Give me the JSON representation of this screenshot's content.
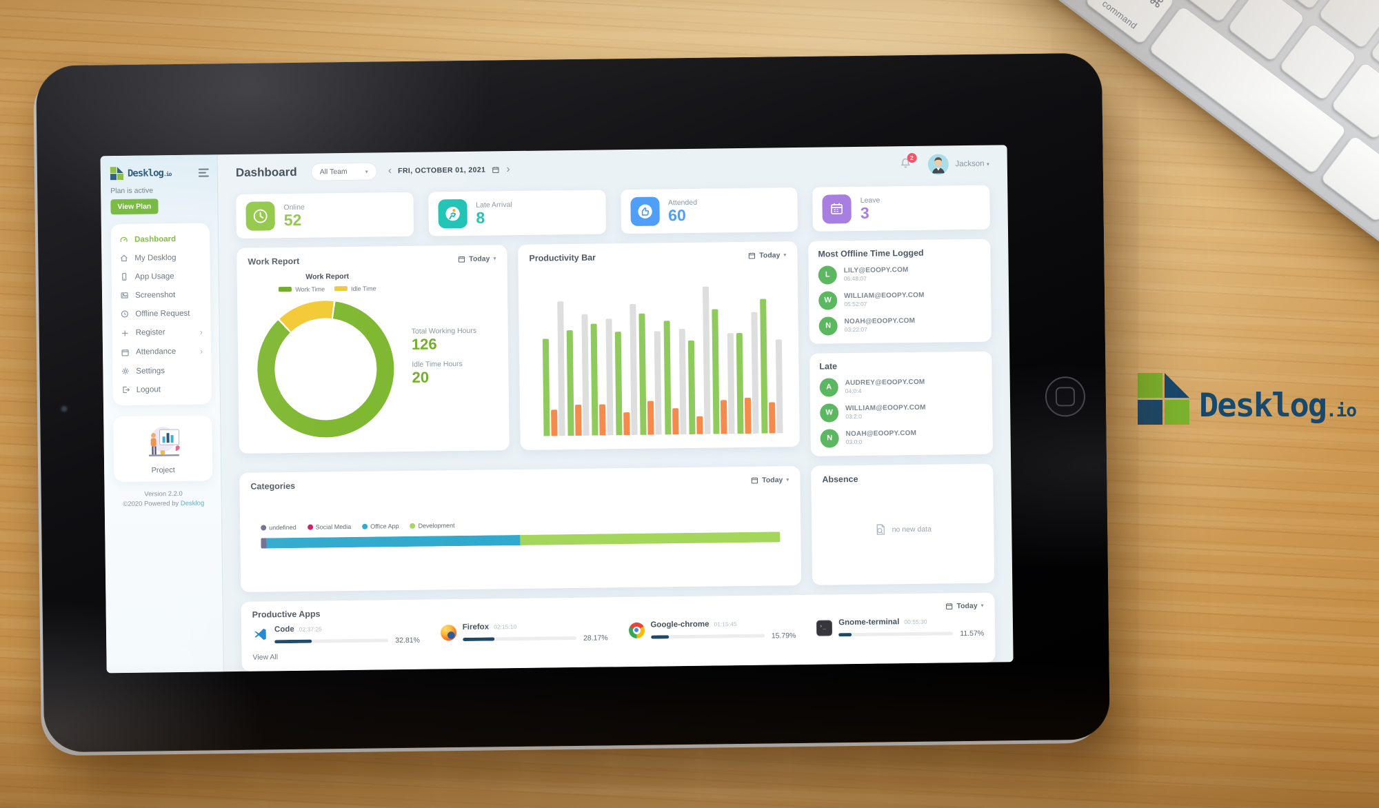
{
  "brand": {
    "name": "Desklog",
    "suffix": ".io"
  },
  "keyboard": {
    "command_symbol": "⌘",
    "command_label": "command",
    "option_label": "option",
    "alt_label": "alt"
  },
  "sidebar": {
    "logo_text": "Desklog",
    "logo_suffix": ".io",
    "plan_status": "Plan is active",
    "view_plan_label": "View Plan",
    "items": [
      {
        "label": "Dashboard",
        "active": true
      },
      {
        "label": "My Desklog"
      },
      {
        "label": "App Usage"
      },
      {
        "label": "Screenshot"
      },
      {
        "label": "Offline Request"
      },
      {
        "label": "Register",
        "has_submenu": true
      },
      {
        "label": "Attendance",
        "has_submenu": true
      },
      {
        "label": "Settings"
      },
      {
        "label": "Logout"
      }
    ],
    "project_label": "Project",
    "version": "Version 2.2.0",
    "copyright_prefix": "©2020 Powered by ",
    "copyright_brand": "Desklog"
  },
  "header": {
    "title": "Dashboard",
    "team_filter": "All Team",
    "date": "FRI, OCTOBER 01, 2021",
    "notification_count": "2",
    "user_name": "Jackson"
  },
  "stats": [
    {
      "label": "Online",
      "value": "52",
      "color": "#8cc63f"
    },
    {
      "label": "Late Arrival",
      "value": "8",
      "color": "#1ec3b5"
    },
    {
      "label": "Attended",
      "value": "60",
      "color": "#4f9ef7"
    },
    {
      "label": "Leave",
      "value": "3",
      "color": "#a87ee0"
    }
  ],
  "work_report": {
    "title": "Work Report",
    "filter": "Today",
    "chart_title": "Work Report",
    "legend": [
      {
        "label": "Work Time",
        "color": "#69a81f"
      },
      {
        "label": "Idle Time",
        "color": "#f2c82e"
      }
    ],
    "total_hours_label": "Total Working Hours",
    "total_hours_value": "126",
    "idle_hours_label": "Idle Time Hours",
    "idle_hours_value": "20"
  },
  "productivity": {
    "title": "Productivity Bar",
    "filter": "Today"
  },
  "most_offline": {
    "title": "Most Offline Time Logged",
    "entries": [
      {
        "initial": "L",
        "email": "LILY@EOOPY.COM",
        "time": "06:48:07"
      },
      {
        "initial": "W",
        "email": "WILLIAM@EOOPY.COM",
        "time": "05:52:07"
      },
      {
        "initial": "N",
        "email": "NOAH@EOOPY.COM",
        "time": "03:22:07"
      }
    ]
  },
  "late": {
    "title": "Late",
    "entries": [
      {
        "initial": "A",
        "email": "AUDREY@EOOPY.COM",
        "time": "04:0:4"
      },
      {
        "initial": "W",
        "email": "WILLIAM@EOOPY.COM",
        "time": "03:2:0"
      },
      {
        "initial": "N",
        "email": "NOAH@EOOPY.COM",
        "time": "03:0:0"
      }
    ]
  },
  "categories": {
    "title": "Categories",
    "filter": "Today"
  },
  "absence": {
    "title": "Absence",
    "empty_text": "no new data"
  },
  "productive_apps": {
    "title": "Productive Apps",
    "filter": "Today",
    "view_all": "View All",
    "apps": [
      {
        "name": "Code",
        "time": "02:37:25",
        "percent": "32.81%",
        "value": 32.81
      },
      {
        "name": "Firefox",
        "time": "02:15:10",
        "percent": "28.17%",
        "value": 28.17
      },
      {
        "name": "Google-chrome",
        "time": "01:15:45",
        "percent": "15.79%",
        "value": 15.79
      },
      {
        "name": "Gnome-terminal",
        "time": "00:55:30",
        "percent": "11.57%",
        "value": 11.57
      }
    ]
  },
  "chart_data": [
    {
      "id": "work_report_donut",
      "type": "pie",
      "donut": true,
      "title": "Work Report",
      "unit": "hours",
      "labels": [
        "Work Time",
        "Idle Time"
      ],
      "values": [
        126,
        20
      ],
      "colors": [
        "#7cb62c",
        "#f2c82e"
      ],
      "start_angle_deg": -42,
      "legend_position": "top"
    },
    {
      "id": "productivity_bars",
      "type": "bar",
      "title": "Productivity Bar",
      "x": [
        1,
        2,
        3,
        4,
        5,
        6,
        7,
        8,
        9,
        10
      ],
      "ylim": [
        0,
        100
      ],
      "grid": false,
      "axis_labels_visible": false,
      "series": [
        {
          "name": "green",
          "color": "#8fcb5c",
          "values": [
            60,
            65,
            69,
            64,
            75,
            70,
            58,
            77,
            62,
            83
          ]
        },
        {
          "name": "orange",
          "color": "#f58a4c",
          "values": [
            16,
            19,
            19,
            14,
            21,
            16,
            11,
            21,
            22,
            19
          ]
        },
        {
          "name": "gray",
          "color": "#dedede",
          "values": [
            83,
            75,
            72,
            81,
            64,
            65,
            91,
            62,
            75,
            58
          ]
        }
      ]
    },
    {
      "id": "categories_bar",
      "type": "bar",
      "stacked": true,
      "horizontal": true,
      "title": "Categories",
      "unit": "percent",
      "segments": [
        {
          "label": "undefined",
          "value": 1,
          "color": "#6f6f91"
        },
        {
          "label": "Social Media",
          "value": 0,
          "color": "#d6186a"
        },
        {
          "label": "Office App",
          "value": 49,
          "color": "#2fa9cd"
        },
        {
          "label": "Development",
          "value": 50,
          "color": "#a5d65c"
        }
      ]
    }
  ]
}
